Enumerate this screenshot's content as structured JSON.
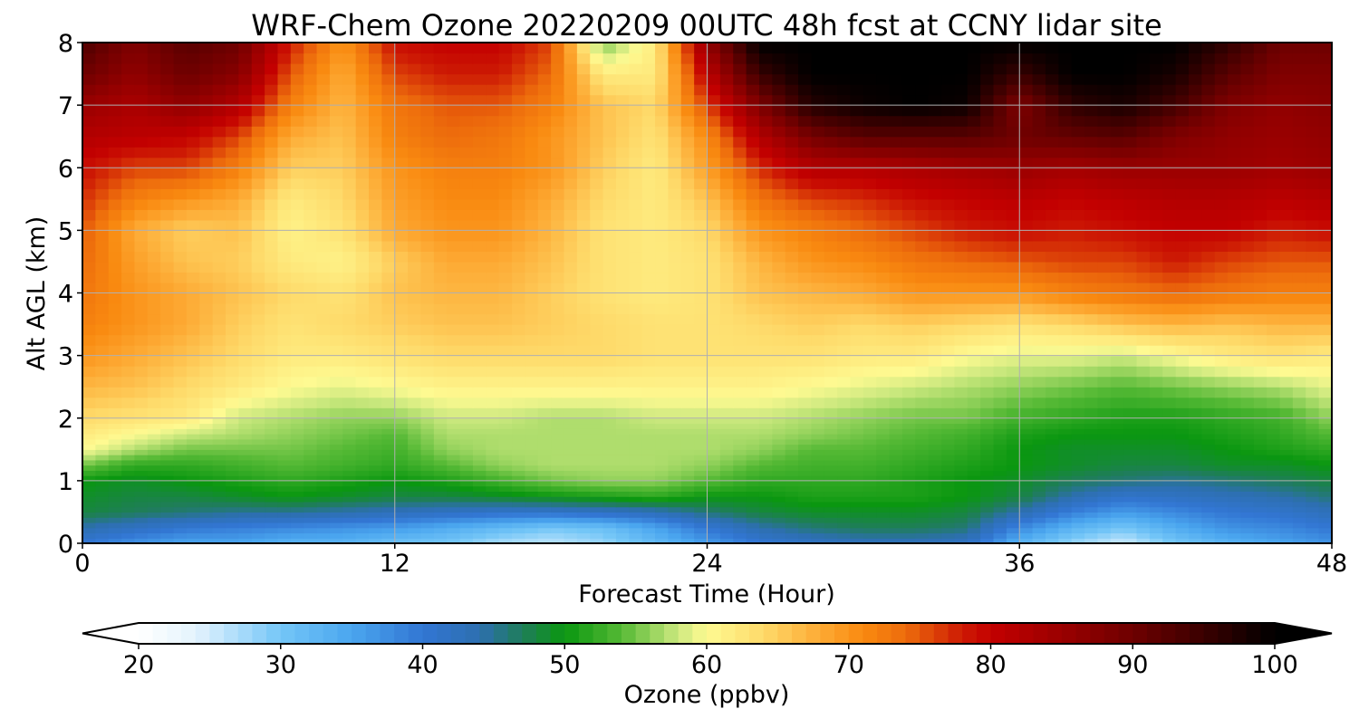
{
  "chart_data": {
    "type": "heatmap",
    "title": "WRF-Chem Ozone  20220209 00UTC 48h fcst at CCNY lidar site",
    "xlabel": "Forecast Time (Hour)",
    "ylabel": "Alt AGL (km)",
    "xlim": [
      0,
      48
    ],
    "ylim": [
      0,
      8
    ],
    "xticks": [
      0,
      12,
      24,
      36,
      48
    ],
    "yticks": [
      0,
      1,
      2,
      3,
      4,
      5,
      6,
      7,
      8
    ],
    "grid": true,
    "x": [
      0,
      2,
      4,
      6,
      8,
      10,
      12,
      14,
      16,
      18,
      20,
      22,
      24,
      26,
      28,
      30,
      32,
      34,
      36,
      38,
      40,
      42,
      44,
      46,
      48
    ],
    "y": [
      0,
      0.25,
      0.5,
      0.75,
      1,
      1.25,
      1.5,
      1.75,
      2,
      2.5,
      3,
      3.5,
      4,
      4.5,
      5,
      5.5,
      6,
      6.5,
      7,
      7.5,
      8
    ],
    "z": [
      [
        40,
        37,
        35,
        35,
        33,
        33,
        31,
        30,
        27,
        26,
        28,
        32,
        36,
        40,
        42,
        43,
        43,
        42,
        33,
        28,
        25,
        30,
        33,
        35,
        37
      ],
      [
        44,
        42,
        40,
        39,
        38,
        37,
        36,
        34,
        32,
        30,
        31,
        35,
        40,
        44,
        46,
        47,
        47,
        46,
        38,
        33,
        30,
        34,
        37,
        38,
        40
      ],
      [
        48,
        47,
        46,
        45,
        45,
        44,
        43,
        42,
        41,
        41,
        42,
        43,
        46,
        48,
        49,
        49,
        49,
        48,
        44,
        39,
        36,
        38,
        40,
        41,
        43
      ],
      [
        49,
        48,
        48,
        49,
        50,
        49,
        48,
        48,
        49,
        50,
        51,
        52,
        50,
        50,
        51,
        51,
        51,
        50,
        48,
        44,
        41,
        42,
        43,
        44,
        46
      ],
      [
        50,
        49,
        50,
        51,
        52,
        51,
        50,
        51,
        53,
        55,
        56,
        56,
        54,
        52,
        52,
        52,
        51,
        50,
        49,
        47,
        46,
        45,
        46,
        47,
        48
      ],
      [
        55,
        52,
        52,
        53,
        54,
        53,
        52,
        54,
        56,
        57,
        57,
        57,
        56,
        54,
        53,
        53,
        52,
        51,
        50,
        49,
        48,
        48,
        49,
        49,
        50
      ],
      [
        60,
        57,
        55,
        55,
        55,
        54,
        53,
        56,
        57,
        57,
        57,
        57,
        57,
        56,
        54,
        54,
        53,
        52,
        50,
        49,
        49,
        49,
        50,
        51,
        52
      ],
      [
        62,
        60,
        58,
        57,
        56,
        55,
        54,
        57,
        57,
        57,
        57,
        57,
        57,
        57,
        56,
        55,
        54,
        53,
        51,
        50,
        50,
        50,
        51,
        52,
        54
      ],
      [
        64,
        63,
        62,
        58,
        57,
        56,
        56,
        58,
        58,
        57,
        57,
        58,
        58,
        58,
        57,
        56,
        55,
        55,
        53,
        52,
        51,
        51,
        52,
        53,
        56
      ],
      [
        67,
        66,
        64,
        62,
        60,
        59,
        60,
        61,
        61,
        61,
        61,
        61,
        61,
        61,
        60,
        59,
        58,
        57,
        56,
        55,
        54,
        55,
        56,
        57,
        59
      ],
      [
        70,
        68,
        66,
        64,
        62,
        62,
        63,
        64,
        64,
        64,
        64,
        63,
        63,
        63,
        63,
        62,
        62,
        60,
        59,
        59,
        58,
        60,
        62,
        63,
        62
      ],
      [
        72,
        70,
        68,
        65,
        63,
        64,
        65,
        66,
        66,
        65,
        64,
        63,
        63,
        64,
        65,
        64,
        65,
        64,
        63,
        64,
        66,
        67,
        66,
        67,
        67
      ],
      [
        73,
        70,
        68,
        66,
        64,
        63,
        66,
        67,
        67,
        65,
        63,
        62,
        63,
        66,
        67,
        68,
        70,
        70,
        70,
        72,
        73,
        74,
        73,
        72,
        72
      ],
      [
        74,
        69,
        66,
        65,
        62,
        61,
        65,
        68,
        68,
        66,
        63,
        62,
        63,
        67,
        70,
        71,
        73,
        74,
        75,
        76,
        76,
        78,
        76,
        75,
        75
      ],
      [
        75,
        68,
        65,
        66,
        61,
        63,
        68,
        70,
        70,
        67,
        63,
        62,
        64,
        70,
        72,
        74,
        76,
        78,
        79,
        78,
        79,
        80,
        80,
        78,
        79
      ],
      [
        77,
        72,
        70,
        68,
        62,
        64,
        69,
        71,
        71,
        68,
        64,
        62,
        66,
        73,
        76,
        77,
        79,
        80,
        81,
        80,
        81,
        82,
        82,
        81,
        82
      ],
      [
        79,
        76,
        76,
        72,
        65,
        65,
        70,
        72,
        72,
        70,
        65,
        62,
        69,
        77,
        82,
        82,
        83,
        84,
        85,
        84,
        85,
        85,
        85,
        84,
        85
      ],
      [
        82,
        81,
        80,
        76,
        68,
        66,
        72,
        74,
        73,
        70,
        66,
        63,
        71,
        82,
        89,
        92,
        92,
        92,
        90,
        91,
        92,
        88,
        86,
        85,
        86
      ],
      [
        85,
        83,
        86,
        82,
        72,
        67,
        73,
        75,
        75,
        72,
        66,
        64,
        76,
        88,
        97,
        99,
        100,
        99,
        88,
        96,
        98,
        94,
        88,
        86,
        87
      ],
      [
        90,
        86,
        90,
        87,
        75,
        68,
        76,
        78,
        78,
        74,
        62,
        62,
        81,
        95,
        100,
        100,
        100,
        100,
        95,
        100,
        100,
        98,
        92,
        88,
        88
      ],
      [
        93,
        88,
        92,
        90,
        78,
        70,
        79,
        80,
        80,
        76,
        55,
        62,
        86,
        100,
        100,
        100,
        100,
        100,
        100,
        100,
        100,
        100,
        96,
        90,
        90
      ]
    ],
    "colorbar": {
      "label": "Ozone  (ppbv)",
      "vmin": 20,
      "vmax": 100,
      "ticks": [
        20,
        30,
        40,
        50,
        60,
        70,
        80,
        90,
        100
      ],
      "extend": "both"
    },
    "colors": {
      "stops": [
        [
          20,
          "#ffffff"
        ],
        [
          24,
          "#e4f3fd"
        ],
        [
          30,
          "#74c6f7"
        ],
        [
          35,
          "#4aa6ef"
        ],
        [
          40,
          "#3276d3"
        ],
        [
          44,
          "#2d6fb0"
        ],
        [
          47,
          "#1f7d5a"
        ],
        [
          50,
          "#0a9710"
        ],
        [
          54,
          "#55b935"
        ],
        [
          58,
          "#cde97f"
        ],
        [
          60,
          "#fefa92"
        ],
        [
          64,
          "#feda6a"
        ],
        [
          68,
          "#fdaa34"
        ],
        [
          71,
          "#f98a10"
        ],
        [
          74,
          "#ed6c0c"
        ],
        [
          78,
          "#cd1a04"
        ],
        [
          80,
          "#c30000"
        ],
        [
          85,
          "#9a0000"
        ],
        [
          90,
          "#6e0000"
        ],
        [
          95,
          "#3a0000"
        ],
        [
          100,
          "#000000"
        ]
      ],
      "under": "#ffffff",
      "over": "#000000",
      "grid": "#b0b0b0"
    }
  }
}
